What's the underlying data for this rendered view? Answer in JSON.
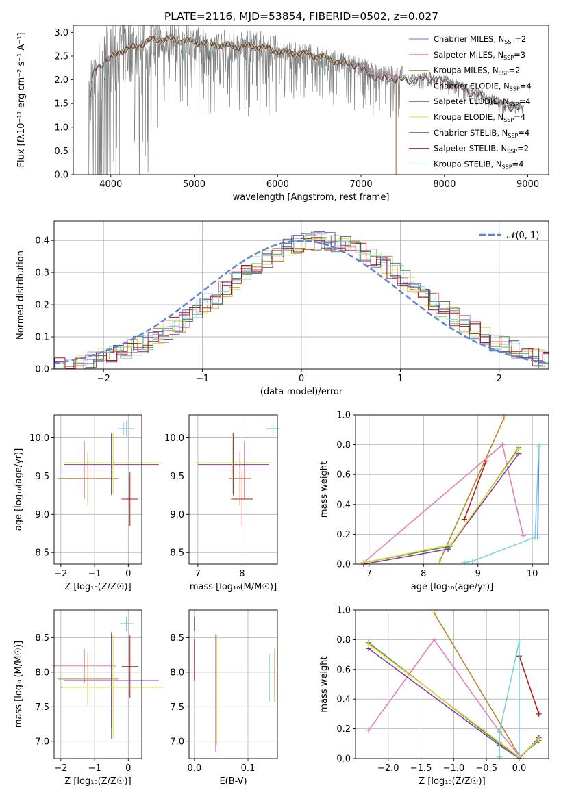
{
  "title": "PLATE=2116, MJD=53854, FIBERID=0502, z=0.027",
  "colors": {
    "Chabrier MILES": "#5a7fd6",
    "Salpeter MILES": "#e07fb8",
    "Kroupa MILES": "#b5882c",
    "Chabrier ELODIE": "#4a8a4a",
    "Salpeter ELODIE": "#8a3a9a",
    "Kroupa ELODIE": "#e0df40",
    "Chabrier STELIB": "#555555",
    "Salpeter STELIB": "#b01818",
    "Kroupa STELIB": "#7ed4dc",
    "data": "#808080",
    "normal": "#5a84d6"
  },
  "chart_data": [
    {
      "id": "spectrum",
      "type": "line",
      "title": "PLATE=2116, MJD=53854, FIBERID=0502, z=0.027",
      "xlabel": "wavelength [Angstrom, rest frame]",
      "ylabel": "Flux [f_λ 10^-17 erg cm^-2 s^-1 A^-1]",
      "xlim": [
        3550,
        9250
      ],
      "ylim": [
        0,
        3.15
      ],
      "xticks": [
        "4000",
        "5000",
        "6000",
        "7000",
        "8000",
        "9000"
      ],
      "yticks": [
        "0.0",
        "0.5",
        "1.0",
        "1.5",
        "2.0",
        "2.5",
        "3.0"
      ],
      "legend": [
        {
          "text": "Chabrier MILES, N",
          "sub": "SSP",
          "val": "=2"
        },
        {
          "text": "Salpeter MILES, N",
          "sub": "SSP",
          "val": "=3"
        },
        {
          "text": "Kroupa MILES, N",
          "sub": "SSP",
          "val": "=2"
        },
        {
          "text": "Chabrier ELODIE, N",
          "sub": "SSP",
          "val": "=4"
        },
        {
          "text": "Salpeter ELODIE, N",
          "sub": "SSP",
          "val": "=4"
        },
        {
          "text": "Kroupa ELODIE, N",
          "sub": "SSP",
          "val": "=4"
        },
        {
          "text": "Chabrier STELIB, N",
          "sub": "SSP",
          "val": "=4"
        },
        {
          "text": "Salpeter STELIB, N",
          "sub": "SSP",
          "val": "=2"
        },
        {
          "text": "Kroupa STELIB, N",
          "sub": "SSP",
          "val": "=4"
        }
      ],
      "continuum": [
        [
          3750,
          1.6
        ],
        [
          3800,
          2.2
        ],
        [
          3900,
          2.35
        ],
        [
          4000,
          2.45
        ],
        [
          4100,
          2.6
        ],
        [
          4300,
          2.7
        ],
        [
          4500,
          2.85
        ],
        [
          4700,
          2.85
        ],
        [
          5000,
          2.8
        ],
        [
          5200,
          2.75
        ],
        [
          5500,
          2.7
        ],
        [
          5800,
          2.7
        ],
        [
          6000,
          2.6
        ],
        [
          6300,
          2.55
        ],
        [
          6500,
          2.5
        ],
        [
          6800,
          2.35
        ],
        [
          7000,
          2.3
        ],
        [
          7200,
          2.1
        ],
        [
          7400,
          2.1
        ],
        [
          7600,
          2.05
        ],
        [
          7800,
          2.1
        ],
        [
          8000,
          2.05
        ],
        [
          8200,
          1.9
        ],
        [
          8400,
          1.75
        ],
        [
          8600,
          1.6
        ],
        [
          8800,
          1.5
        ],
        [
          9000,
          1.42
        ]
      ]
    },
    {
      "id": "residuals",
      "type": "line",
      "xlabel": "(data-model)/error",
      "ylabel": "Normed distribution",
      "xlim": [
        -2.5,
        2.5
      ],
      "ylim": [
        0,
        0.46
      ],
      "xticks": [
        "−2",
        "−1",
        "0",
        "1",
        "2"
      ],
      "yticks": [
        "0.0",
        "0.1",
        "0.2",
        "0.3",
        "0.4"
      ],
      "legend": "𝒩(0, 1)"
    },
    {
      "id": "age-vs-Z",
      "type": "scatter",
      "xlabel": "Z [log₁₀(Z/Z☉)]",
      "ylabel": "age [log₁₀(age/yr)]",
      "xlim": [
        -2.2,
        0.4
      ],
      "ylim": [
        8.35,
        10.3
      ],
      "xticks": [
        "−2",
        "−1",
        "0"
      ],
      "yticks": [
        "8.5",
        "9.0",
        "9.5",
        "10.0"
      ],
      "points": [
        {
          "model": "Chabrier MILES",
          "x": -0.15,
          "xerr": 0.15,
          "y": 10.12,
          "yerr": 0.08
        },
        {
          "model": "Salpeter MILES",
          "x": -1.3,
          "xerr": 0.9,
          "y": 9.58,
          "yerr": 0.38
        },
        {
          "model": "Kroupa MILES",
          "x": -1.2,
          "xerr": 0.9,
          "y": 9.47,
          "yerr": 0.35
        },
        {
          "model": "Chabrier ELODIE",
          "x": -0.5,
          "xerr": 1.5,
          "y": 9.67,
          "yerr": 0.4
        },
        {
          "model": "Salpeter ELODIE",
          "x": -0.5,
          "xerr": 1.4,
          "y": 9.65,
          "yerr": 0.4
        },
        {
          "model": "Kroupa ELODIE",
          "x": -0.45,
          "xerr": 1.5,
          "y": 9.67,
          "yerr": 0.4
        },
        {
          "model": "Chabrier STELIB",
          "x": -0.05,
          "xerr": 0.2,
          "y": 10.12,
          "yerr": 0.1
        },
        {
          "model": "Salpeter STELIB",
          "x": 0.05,
          "xerr": 0.25,
          "y": 9.2,
          "yerr": 0.35
        },
        {
          "model": "Kroupa STELIB",
          "x": -0.05,
          "xerr": 0.2,
          "y": 10.12,
          "yerr": 0.1
        }
      ]
    },
    {
      "id": "age-vs-mass",
      "type": "scatter",
      "xlabel": "mass [log₁₀(M/M☉)]",
      "xlim": [
        6.8,
        8.8
      ],
      "ylim": [
        8.35,
        10.3
      ],
      "xticks": [
        "7",
        "8"
      ],
      "yticks": [
        "8.5",
        "9.0",
        "9.5",
        "10.0"
      ],
      "points": [
        {
          "model": "Chabrier MILES",
          "x": 8.7,
          "xerr": 0.1,
          "y": 10.12,
          "yerr": 0.08
        },
        {
          "model": "Salpeter MILES",
          "x": 8.05,
          "xerr": 0.6,
          "y": 9.58,
          "yerr": 0.38
        },
        {
          "model": "Kroupa MILES",
          "x": 7.95,
          "xerr": 0.25,
          "y": 9.47,
          "yerr": 0.35
        },
        {
          "model": "Chabrier ELODIE",
          "x": 7.8,
          "xerr": 0.85,
          "y": 9.67,
          "yerr": 0.4
        },
        {
          "model": "Salpeter ELODIE",
          "x": 7.8,
          "xerr": 0.8,
          "y": 9.65,
          "yerr": 0.4
        },
        {
          "model": "Kroupa ELODIE",
          "x": 7.78,
          "xerr": 0.85,
          "y": 9.67,
          "yerr": 0.4
        },
        {
          "model": "Chabrier STELIB",
          "x": 8.7,
          "xerr": 0.15,
          "y": 10.12,
          "yerr": 0.1
        },
        {
          "model": "Salpeter STELIB",
          "x": 8.0,
          "xerr": 0.25,
          "y": 9.2,
          "yerr": 0.35
        },
        {
          "model": "Kroupa STELIB",
          "x": 8.7,
          "xerr": 0.15,
          "y": 10.12,
          "yerr": 0.1
        }
      ]
    },
    {
      "id": "mass-weight-vs-age",
      "type": "line",
      "xlabel": "age [log₁₀(age/yr)]",
      "ylabel": "mass weight",
      "xlim": [
        6.75,
        10.3
      ],
      "ylim": [
        0,
        1
      ],
      "xticks": [
        "7",
        "8",
        "9",
        "10"
      ],
      "yticks": [
        "0.0",
        "0.2",
        "0.4",
        "0.6",
        "0.8",
        "1.0"
      ],
      "series": [
        {
          "model": "Chabrier MILES",
          "x": [
            10.12,
            10.1
          ],
          "y": [
            0.79,
            0.18
          ]
        },
        {
          "model": "Kroupa MILES",
          "x": [
            8.3,
            9.48
          ],
          "y": [
            0.02,
            0.98
          ]
        },
        {
          "model": "Salpeter MILES",
          "x": [
            6.9,
            9.45,
            9.83
          ],
          "y": [
            0.01,
            0.8,
            0.19
          ]
        },
        {
          "model": "Chabrier ELODIE",
          "x": [
            6.9,
            8.5,
            9.75
          ],
          "y": [
            0.01,
            0.12,
            0.78
          ]
        },
        {
          "model": "Salpeter ELODIE",
          "x": [
            6.9,
            8.45,
            9.75
          ],
          "y": [
            0.0,
            0.1,
            0.74
          ]
        },
        {
          "model": "Kroupa ELODIE",
          "x": [
            6.9,
            8.5,
            9.75
          ],
          "y": [
            0.01,
            0.13,
            0.77
          ]
        },
        {
          "model": "Salpeter STELIB",
          "x": [
            8.75,
            9.15
          ],
          "y": [
            0.3,
            0.69
          ]
        },
        {
          "model": "Kroupa STELIB",
          "x": [
            8.75,
            8.9,
            10.05,
            10.12
          ],
          "y": [
            0.01,
            0.02,
            0.18,
            0.79
          ]
        }
      ]
    },
    {
      "id": "mass-vs-Z",
      "type": "scatter",
      "xlabel": "Z [log₁₀(Z/Z☉)]",
      "ylabel": "mass [log₁₀(M/M☉)]",
      "xlim": [
        -2.2,
        0.4
      ],
      "ylim": [
        6.75,
        8.9
      ],
      "xticks": [
        "−2",
        "−1",
        "0"
      ],
      "yticks": [
        "7.0",
        "7.5",
        "8.0",
        "8.5"
      ],
      "points": [
        {
          "model": "Chabrier MILES",
          "x": -0.05,
          "xerr": 0.18,
          "y": 8.7,
          "yerr": 0.1
        },
        {
          "model": "Salpeter MILES",
          "x": -1.3,
          "xerr": 0.95,
          "y": 8.09,
          "yerr": 0.25
        },
        {
          "model": "Kroupa MILES",
          "x": -1.2,
          "xerr": 0.9,
          "y": 7.9,
          "yerr": 0.38
        },
        {
          "model": "Chabrier ELODIE",
          "x": -0.5,
          "xerr": 1.5,
          "y": 7.78,
          "yerr": 0.75
        },
        {
          "model": "Salpeter ELODIE",
          "x": -0.5,
          "xerr": 1.4,
          "y": 7.88,
          "yerr": 0.7
        },
        {
          "model": "Kroupa ELODIE",
          "x": -0.45,
          "xerr": 1.5,
          "y": 7.78,
          "yerr": 0.75
        },
        {
          "model": "Chabrier STELIB",
          "x": -0.05,
          "xerr": 0.2,
          "y": 8.7,
          "yerr": 0.1
        },
        {
          "model": "Salpeter STELIB",
          "x": 0.05,
          "xerr": 0.25,
          "y": 8.08,
          "yerr": 0.45
        },
        {
          "model": "Kroupa STELIB",
          "x": -0.05,
          "xerr": 0.2,
          "y": 8.7,
          "yerr": 0.1
        }
      ]
    },
    {
      "id": "mass-vs-ebv",
      "type": "scatter",
      "xlabel": "E(B-V)",
      "xlim": [
        -0.01,
        0.155
      ],
      "ylim": [
        6.75,
        8.9
      ],
      "xticks": [
        "0.0",
        "0.1"
      ],
      "yticks": [
        "7.0",
        "7.5",
        "8.0",
        "8.5"
      ],
      "points": [
        {
          "model": "Chabrier MILES",
          "x": 0.0,
          "y": 8.7,
          "yerr": 0.1
        },
        {
          "model": "Salpeter MILES",
          "x": 0.15,
          "y": 8.0,
          "yerr": 0.35
        },
        {
          "model": "Kroupa MILES",
          "x": 0.15,
          "y": 7.95,
          "yerr": 0.38
        },
        {
          "model": "Chabrier ELODIE",
          "x": 0.04,
          "y": 7.7,
          "yerr": 0.85
        },
        {
          "model": "Salpeter ELODIE",
          "x": 0.04,
          "y": 7.7,
          "yerr": 0.85
        },
        {
          "model": "Kroupa ELODIE",
          "x": 0.042,
          "y": 7.75,
          "yerr": 0.8
        },
        {
          "model": "Chabrier STELIB",
          "x": 0.0,
          "y": 8.7,
          "yerr": 0.1
        },
        {
          "model": "Salpeter STELIB",
          "x": 0.0,
          "y": 8.18,
          "yerr": 0.3
        },
        {
          "model": "Kroupa STELIB",
          "x": 0.14,
          "y": 7.92,
          "yerr": 0.35
        }
      ]
    },
    {
      "id": "mass-weight-vs-Z",
      "type": "line",
      "xlabel": "Z [log₁₀(Z/Z☉)]",
      "ylabel": "mass weight",
      "xlim": [
        -2.5,
        0.45
      ],
      "ylim": [
        0,
        1
      ],
      "xticks": [
        "−2.0",
        "−1.5",
        "−1.0",
        "−0.5",
        "0.0"
      ],
      "yticks": [
        "0.0",
        "0.2",
        "0.4",
        "0.6",
        "0.8",
        "1.0"
      ],
      "series": [
        {
          "model": "Kroupa MILES",
          "x": [
            -1.3,
            0.0
          ],
          "y": [
            0.98,
            0.02
          ]
        },
        {
          "model": "Salpeter MILES",
          "x": [
            -2.3,
            -1.3,
            -0.3,
            0.0
          ],
          "y": [
            0.19,
            0.8,
            0.18,
            0.02
          ]
        },
        {
          "model": "Chabrier ELODIE",
          "x": [
            -2.3,
            -0.3,
            0.0,
            0.3
          ],
          "y": [
            0.78,
            0.1,
            0.01,
            0.12
          ]
        },
        {
          "model": "Salpeter ELODIE",
          "x": [
            -2.3,
            -0.3,
            0.0,
            0.3
          ],
          "y": [
            0.74,
            0.09,
            0.0,
            0.14
          ]
        },
        {
          "model": "Kroupa ELODIE",
          "x": [
            -2.3,
            -0.3,
            0.0,
            0.3
          ],
          "y": [
            0.77,
            0.11,
            0.01,
            0.13
          ]
        },
        {
          "model": "Salpeter STELIB",
          "x": [
            0.0,
            0.3
          ],
          "y": [
            0.69,
            0.3
          ]
        },
        {
          "model": "Kroupa STELIB",
          "x": [
            -0.3,
            -0.3,
            0.0,
            0.0
          ],
          "y": [
            0.01,
            0.18,
            0.79,
            0.02
          ]
        }
      ]
    }
  ]
}
